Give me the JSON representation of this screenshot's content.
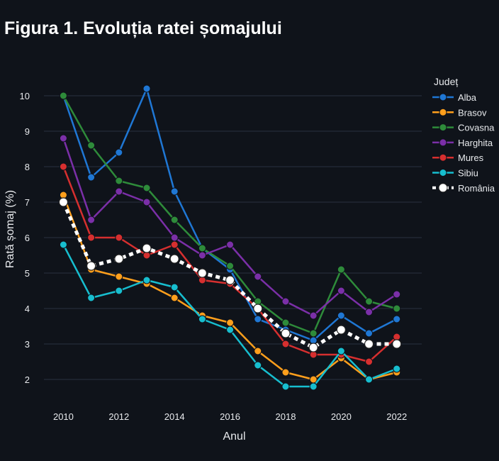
{
  "title": "Figura 1. Evoluția ratei șomajului",
  "chart_data": {
    "type": "line",
    "title": "Figura 1. Evoluția ratei șomajului",
    "xlabel": "Anul",
    "ylabel": "Rată șomaj (%)",
    "legend_title": "Județ",
    "legend_position": "right",
    "grid": true,
    "x": [
      2010,
      2011,
      2012,
      2013,
      2014,
      2015,
      2016,
      2017,
      2018,
      2019,
      2020,
      2021,
      2022
    ],
    "x_ticks": [
      2010,
      2012,
      2014,
      2016,
      2018,
      2020,
      2022
    ],
    "y_ticks": [
      2,
      3,
      4,
      5,
      6,
      7,
      8,
      9,
      10
    ],
    "xlim": [
      2009.3,
      2022.9
    ],
    "ylim": [
      1.1,
      10.9
    ],
    "series": [
      {
        "name": "Alba",
        "color": "#1f77d4",
        "values": [
          10.0,
          7.7,
          8.4,
          10.2,
          7.3,
          5.7,
          5.1,
          3.7,
          3.4,
          3.1,
          3.8,
          3.3,
          3.7
        ]
      },
      {
        "name": "Brasov",
        "color": "#ff9f1c",
        "values": [
          7.2,
          5.1,
          4.9,
          4.7,
          4.3,
          3.8,
          3.6,
          2.8,
          2.2,
          2.0,
          2.6,
          2.0,
          2.2
        ]
      },
      {
        "name": "Covasna",
        "color": "#2e8b3a",
        "values": [
          10.0,
          8.6,
          7.6,
          7.4,
          6.5,
          5.7,
          5.2,
          4.2,
          3.6,
          3.3,
          5.1,
          4.2,
          4.0
        ]
      },
      {
        "name": "Harghita",
        "color": "#7b2fa8",
        "values": [
          8.8,
          6.5,
          7.3,
          7.0,
          6.0,
          5.5,
          5.8,
          4.9,
          4.2,
          3.8,
          4.5,
          3.9,
          4.4
        ]
      },
      {
        "name": "Mures",
        "color": "#d62f2f",
        "values": [
          8.0,
          6.0,
          6.0,
          5.5,
          5.8,
          4.8,
          4.7,
          4.0,
          3.0,
          2.7,
          2.7,
          2.5,
          3.2
        ]
      },
      {
        "name": "Sibiu",
        "color": "#17becf",
        "values": [
          5.8,
          4.3,
          4.5,
          4.8,
          4.6,
          3.7,
          3.4,
          2.4,
          1.8,
          1.8,
          2.8,
          2.0,
          2.3
        ]
      },
      {
        "name": "România",
        "color": "#ffffff",
        "dashed": true,
        "values": [
          7.0,
          5.2,
          5.4,
          5.7,
          5.4,
          5.0,
          4.8,
          4.0,
          3.3,
          2.9,
          3.4,
          3.0,
          3.0
        ]
      }
    ]
  }
}
